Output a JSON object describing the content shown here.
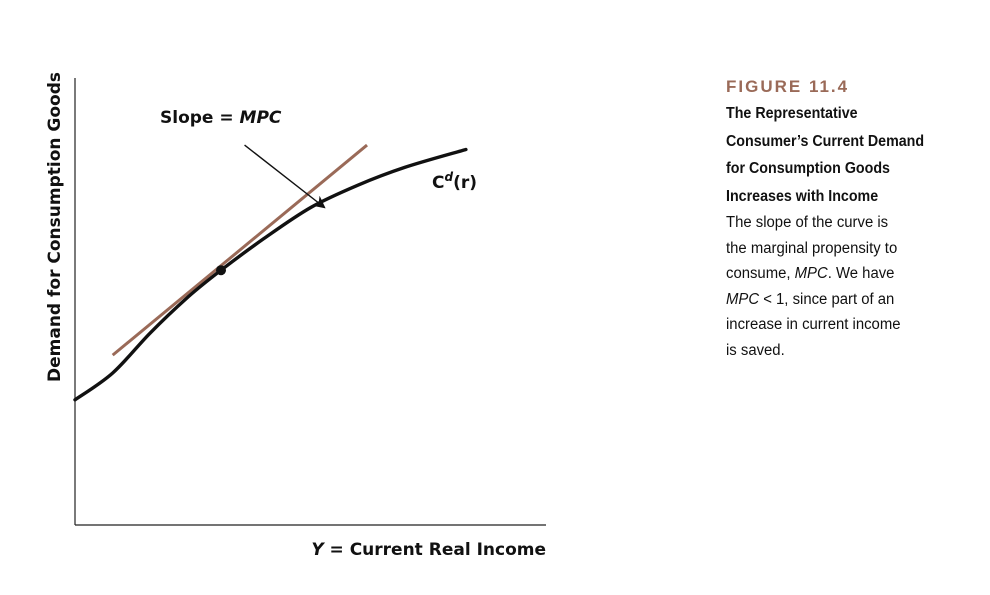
{
  "chart_data": {
    "type": "line",
    "title": "",
    "xlabel_var": "Y",
    "xlabel_rest": " = Current Real Income",
    "ylabel": "Demand for Consumption Goods",
    "x_ticks": [],
    "y_ticks": [],
    "grid": false,
    "xlim": [
      0,
      10
    ],
    "ylim": [
      0,
      10
    ],
    "series": [
      {
        "name": "Cd(r)",
        "label_base": "C",
        "label_sup": "d",
        "label_arg": "(r)",
        "color": "#111111",
        "points": [
          [
            0.0,
            2.8
          ],
          [
            0.8,
            3.4
          ],
          [
            1.6,
            4.3
          ],
          [
            2.4,
            5.1
          ],
          [
            3.1,
            5.7
          ],
          [
            4.0,
            6.4
          ],
          [
            5.0,
            7.1
          ],
          [
            6.0,
            7.6
          ],
          [
            7.0,
            8.0
          ],
          [
            8.3,
            8.4
          ]
        ]
      }
    ],
    "tangent": {
      "color": "#9a6a58",
      "from": [
        0.8,
        3.8
      ],
      "to": [
        6.2,
        8.5
      ]
    },
    "tangency_point": [
      3.1,
      5.7
    ],
    "annotation": {
      "text_prefix": "Slope = ",
      "text_var": "MPC",
      "arrow_from": [
        3.6,
        8.5
      ],
      "arrow_to": [
        5.3,
        7.1
      ]
    }
  },
  "caption": {
    "figure_label": "FIGURE 11.4",
    "title_lines": [
      "The Representative",
      "Consumer’s Current Demand",
      "for Consumption Goods",
      "Increases with Income"
    ],
    "body": {
      "line1": "The slope of the curve is",
      "line2": "the marginal propensity to",
      "line3_a": "consume, ",
      "line3_var": "MPC",
      "line3_b": ". We have",
      "line4_var": "MPC",
      "line4_b": " < 1, since part of an",
      "line5": "increase in current income",
      "line6": "is saved."
    }
  }
}
